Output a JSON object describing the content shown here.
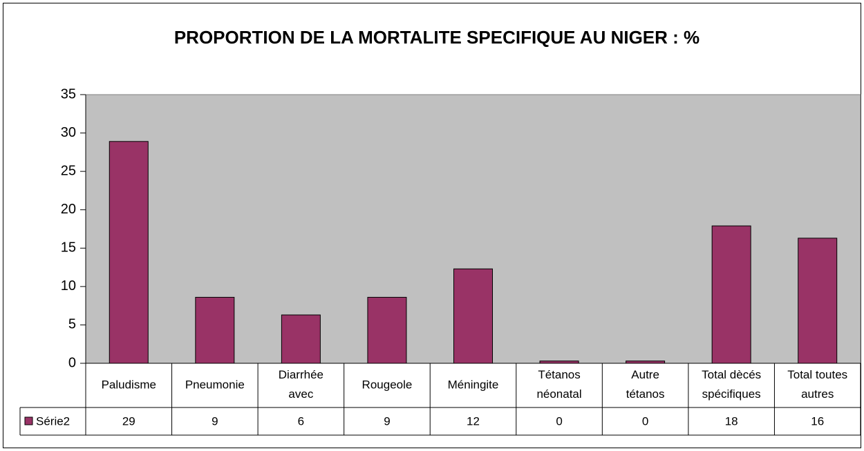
{
  "chart_data": {
    "type": "bar",
    "title": "PROPORTION DE LA MORTALITE SPECIFIQUE AU NIGER : %",
    "categories": [
      "Paludisme",
      "Pneumonie",
      "Diarrhée avec",
      "Rougeole",
      "Méningite",
      "Tétanos néonatal",
      "Autre tétanos",
      "Total dècés spécifiques",
      "Total toutes autres"
    ],
    "series": [
      {
        "name": "Série2",
        "color": "#993366",
        "values": [
          28.9,
          8.6,
          6.3,
          8.6,
          12.3,
          0.3,
          0.3,
          17.9,
          16.3
        ],
        "value_labels": [
          "29",
          "9",
          "6",
          "9",
          "12",
          "0",
          "0",
          "18",
          "16"
        ]
      }
    ],
    "ylim": [
      0,
      35
    ],
    "yticks": [
      0,
      5,
      10,
      15,
      20,
      25,
      30,
      35
    ],
    "plot_background": "#c0c0c0",
    "data_table": true
  }
}
